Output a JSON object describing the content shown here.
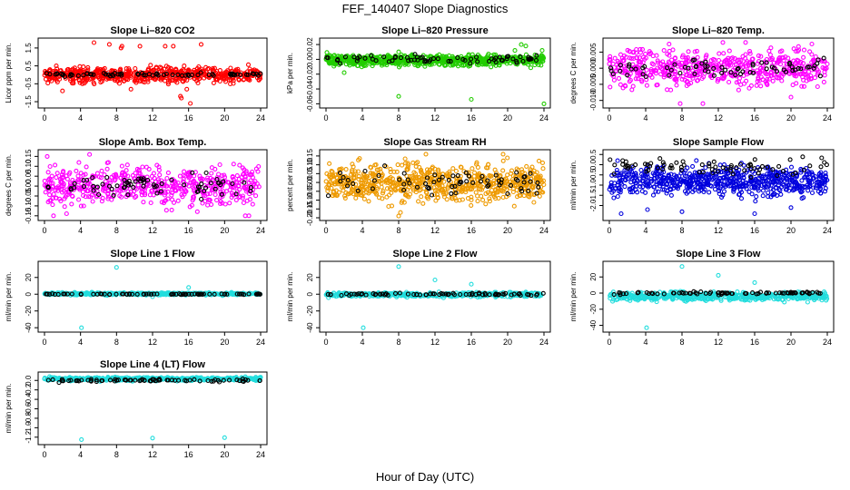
{
  "page": {
    "title": "FEF_140407  Slope Diagnostics",
    "x_caption": "Hour of Day (UTC)"
  },
  "palette": {
    "black": "#000000",
    "red": "#ff0000",
    "green": "#22cc00",
    "magenta": "#ff00ff",
    "orange": "#ee9a00",
    "blue": "#0000dd",
    "cyan": "#22dddd"
  },
  "chart_data": [
    {
      "type": "scatter",
      "title": "Slope Li–820 CO2",
      "ylabel": "Licor ppm per min.",
      "xlim": [
        0,
        24
      ],
      "xticks": [
        0,
        4,
        8,
        12,
        16,
        20,
        24
      ],
      "ylim": [
        -1.7,
        1.9
      ],
      "yticks": [
        -1.5,
        -0.5,
        0.5,
        1.5
      ],
      "ytick_labels": [
        "-1.5",
        "-0.5",
        "0.5",
        "1.5"
      ],
      "series": [
        {
          "color": "red",
          "base": 0.0,
          "spread": 0.28,
          "n": 600,
          "outliers": [
            [
              5.5,
              1.8
            ],
            [
              7.2,
              1.7
            ],
            [
              8.5,
              1.5
            ],
            [
              8.6,
              1.6
            ],
            [
              10.6,
              1.6
            ],
            [
              13.4,
              1.6
            ],
            [
              14.3,
              1.6
            ],
            [
              17.4,
              1.7
            ],
            [
              15.1,
              -1.2
            ],
            [
              15.2,
              -1.3
            ],
            [
              9.6,
              -0.8
            ],
            [
              2.0,
              -0.9
            ],
            [
              4.2,
              -0.5
            ],
            [
              16.2,
              -1.6
            ],
            [
              15.8,
              -0.8
            ]
          ]
        },
        {
          "color": "black",
          "base": 0.02,
          "spread": 0.06,
          "n": 70
        }
      ]
    },
    {
      "type": "scatter",
      "title": "Slope Li–820 Pressure",
      "ylabel": "kPa per min.",
      "xlim": [
        0,
        24
      ],
      "xticks": [
        0,
        4,
        8,
        12,
        16,
        20,
        24
      ],
      "ylim": [
        -0.062,
        0.025
      ],
      "yticks": [
        -0.06,
        -0.04,
        -0.02,
        0.0,
        0.02
      ],
      "ytick_labels": [
        "-0.06",
        "-0.04",
        "-0.02",
        "0.00",
        "0.02"
      ],
      "series": [
        {
          "color": "green",
          "base": -0.001,
          "spread": 0.005,
          "n": 700,
          "outliers": [
            [
              8.0,
              -0.05
            ],
            [
              16.0,
              -0.054
            ],
            [
              24.0,
              -0.06
            ],
            [
              21.5,
              0.02
            ],
            [
              22.0,
              0.018
            ],
            [
              20.8,
              0.012
            ],
            [
              8.0,
              0.01
            ],
            [
              2.0,
              -0.018
            ],
            [
              23.8,
              0.012
            ]
          ]
        },
        {
          "color": "black",
          "base": 0.0,
          "spread": 0.004,
          "n": 70
        }
      ]
    },
    {
      "type": "scatter",
      "title": "Slope Li–820 Temp.",
      "ylabel": "degrees C per min.",
      "xlim": [
        0,
        24
      ],
      "xticks": [
        0,
        4,
        8,
        12,
        16,
        20,
        24
      ],
      "ylim": [
        -0.0115,
        0.0085
      ],
      "yticks": [
        -0.01,
        -0.005,
        0.0,
        0.005
      ],
      "ytick_labels": [
        "-0.010",
        "-0.005",
        "0.000",
        "0.005"
      ],
      "series": [
        {
          "color": "magenta",
          "base": 0.0,
          "spread": 0.0038,
          "n": 550,
          "outliers": [
            [
              7.8,
              -0.011
            ],
            [
              10.3,
              -0.011
            ],
            [
              12.5,
              0.008
            ],
            [
              15.0,
              0.008
            ],
            [
              20.0,
              -0.009
            ],
            [
              22.3,
              0.0075
            ]
          ]
        },
        {
          "color": "black",
          "base": 0.0,
          "spread": 0.0018,
          "n": 70
        }
      ]
    },
    {
      "type": "scatter",
      "title": "Slope Amb. Box Temp.",
      "ylabel": "degrees C per min.",
      "xlim": [
        0,
        24
      ],
      "xticks": [
        0,
        4,
        8,
        12,
        16,
        20,
        24
      ],
      "ylim": [
        -0.16,
        0.17
      ],
      "yticks": [
        -0.15,
        -0.1,
        -0.05,
        0.0,
        0.05,
        0.1,
        0.15
      ],
      "ytick_labels": [
        "-0.15",
        "-0.10",
        "-0.05",
        "0.00",
        "0.05",
        "0.10",
        "0.15"
      ],
      "series": [
        {
          "color": "magenta",
          "base": 0.0,
          "spread": 0.065,
          "n": 550,
          "outliers": [
            [
              0.3,
              0.15
            ],
            [
              1.0,
              -0.15
            ],
            [
              22.3,
              -0.15
            ],
            [
              22.7,
              -0.15
            ],
            [
              5.0,
              0.16
            ]
          ]
        },
        {
          "color": "black",
          "base": 0.0,
          "spread": 0.035,
          "n": 70
        }
      ]
    },
    {
      "type": "scatter",
      "title": "Slope Gas Stream RH",
      "ylabel": "percent per min.",
      "xlim": [
        0,
        24
      ],
      "xticks": [
        0,
        4,
        8,
        12,
        16,
        20,
        24
      ],
      "ylim": [
        -0.2,
        0.17
      ],
      "yticks": [
        -0.2,
        -0.15,
        -0.1,
        -0.05,
        0.0,
        0.05,
        0.1,
        0.15
      ],
      "ytick_labels": [
        "-0.20",
        "-0.15",
        "-0.10",
        "-0.05",
        "0.00",
        "0.05",
        "0.10",
        "0.15"
      ],
      "series": [
        {
          "color": "orange",
          "base": 0.0,
          "spread": 0.075,
          "n": 700,
          "outliers": [
            [
              8.0,
              -0.19
            ],
            [
              8.2,
              -0.17
            ],
            [
              19.5,
              0.16
            ],
            [
              11.0,
              0.16
            ]
          ]
        },
        {
          "color": "black",
          "base": 0.0,
          "spread": 0.05,
          "n": 70
        }
      ]
    },
    {
      "type": "scatter",
      "title": "Slope Sample Flow",
      "ylabel": "ml/min per min.",
      "xlim": [
        0,
        24
      ],
      "xticks": [
        0,
        4,
        8,
        12,
        16,
        20,
        24
      ],
      "ylim": [
        -2.6,
        0.6
      ],
      "yticks": [
        -2.0,
        -1.5,
        -1.0,
        -0.5,
        0.0,
        0.5
      ],
      "ytick_labels": [
        "-2.0",
        "-1.5",
        "-1.0",
        "-0.5",
        "0.0",
        "0.5"
      ],
      "series": [
        {
          "color": "blue",
          "base": -0.8,
          "spread": 0.5,
          "n": 650,
          "outliers": [
            [
              1.3,
              -2.4
            ],
            [
              8.0,
              -2.3
            ],
            [
              16.0,
              -2.4
            ],
            [
              4.2,
              -2.2
            ],
            [
              20.0,
              -2.1
            ]
          ]
        },
        {
          "color": "black",
          "base": -0.1,
          "spread": 0.3,
          "n": 75
        }
      ]
    },
    {
      "type": "scatter",
      "title": "Slope Line 1 Flow",
      "ylabel": "ml/min per min.",
      "xlim": [
        0,
        24
      ],
      "xticks": [
        0,
        4,
        8,
        12,
        16,
        20,
        24
      ],
      "ylim": [
        -42,
        36
      ],
      "yticks": [
        -40,
        -20,
        0,
        20
      ],
      "ytick_labels": [
        "-40",
        "-20",
        "0",
        "20"
      ],
      "series": [
        {
          "color": "cyan",
          "base": 0.5,
          "spread": 1.0,
          "n": 450,
          "outliers": [
            [
              8.0,
              32
            ],
            [
              16.0,
              8
            ],
            [
              4.1,
              -40
            ],
            [
              12.0,
              -3
            ]
          ]
        },
        {
          "color": "black",
          "base": 0.0,
          "spread": 0.3,
          "n": 75
        }
      ]
    },
    {
      "type": "scatter",
      "title": "Slope Line 2 Flow",
      "ylabel": "ml/min per min.",
      "xlim": [
        0,
        24
      ],
      "xticks": [
        0,
        4,
        8,
        12,
        16,
        20,
        24
      ],
      "ylim": [
        -42,
        36
      ],
      "yticks": [
        -40,
        -20,
        0,
        20
      ],
      "ytick_labels": [
        "-40",
        "-20",
        "0",
        "20"
      ],
      "series": [
        {
          "color": "cyan",
          "base": -0.5,
          "spread": 1.8,
          "n": 450,
          "outliers": [
            [
              8.0,
              33
            ],
            [
              12.0,
              17
            ],
            [
              16.0,
              12
            ],
            [
              4.1,
              -40
            ],
            [
              20.0,
              -3
            ]
          ]
        },
        {
          "color": "black",
          "base": 0.0,
          "spread": 1.0,
          "n": 75
        }
      ]
    },
    {
      "type": "scatter",
      "title": "Slope Line 3 Flow",
      "ylabel": "ml/min per min.",
      "xlim": [
        0,
        24
      ],
      "xticks": [
        0,
        4,
        8,
        12,
        16,
        20,
        24
      ],
      "ylim": [
        -45,
        36
      ],
      "yticks": [
        -40,
        -20,
        0,
        20
      ],
      "ytick_labels": [
        "-40",
        "-20",
        "0",
        "20"
      ],
      "series": [
        {
          "color": "cyan",
          "base": -4.0,
          "spread": 3.5,
          "n": 550,
          "outliers": [
            [
              8.0,
              33
            ],
            [
              12.0,
              22
            ],
            [
              16.0,
              13
            ],
            [
              4.1,
              -43
            ]
          ]
        },
        {
          "color": "black",
          "base": 0.0,
          "spread": 1.2,
          "n": 75
        }
      ]
    },
    {
      "type": "scatter",
      "title": "Slope Line 4 (LT) Flow",
      "ylabel": "ml/min per min.",
      "xlim": [
        0,
        24
      ],
      "xticks": [
        0,
        4,
        8,
        12,
        16,
        20,
        24
      ],
      "ylim": [
        -1.3,
        0.12
      ],
      "yticks": [
        -1.2,
        -1.0,
        -0.8,
        -0.6,
        -0.4,
        -0.2,
        0.0
      ],
      "ytick_labels": [
        "-1.2",
        "-1.0",
        "-0.8",
        "-0.6",
        "-0.4",
        "-0.2",
        "0.0"
      ],
      "series": [
        {
          "color": "cyan",
          "base": 0.03,
          "spread": 0.025,
          "n": 500,
          "outliers": [
            [
              4.1,
              -1.25
            ],
            [
              12.0,
              -1.22
            ],
            [
              20.0,
              -1.21
            ]
          ]
        },
        {
          "color": "black",
          "base": 0.0,
          "spread": 0.02,
          "n": 75
        }
      ]
    }
  ]
}
